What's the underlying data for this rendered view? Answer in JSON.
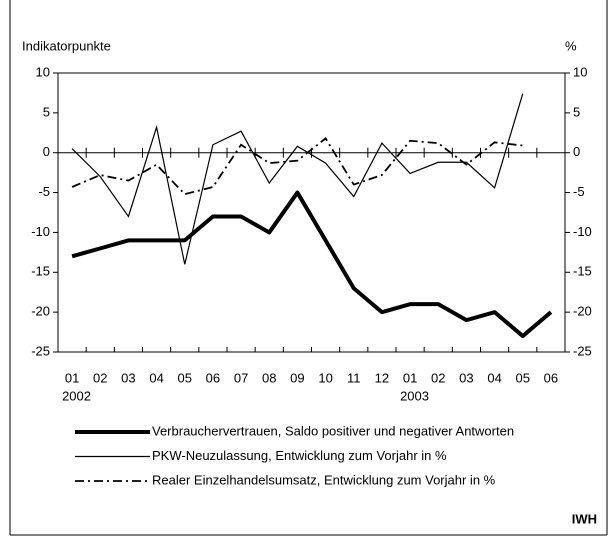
{
  "chart_data": {
    "type": "line",
    "ylabel": "Indikatorpunkte",
    "y2label": "%",
    "categories": [
      "01",
      "02",
      "03",
      "04",
      "05",
      "06",
      "07",
      "08",
      "09",
      "10",
      "11",
      "12",
      "01",
      "02",
      "03",
      "04",
      "05",
      "06"
    ],
    "category_years": [
      "2002",
      null,
      null,
      null,
      null,
      null,
      null,
      null,
      null,
      null,
      null,
      null,
      "2003",
      null,
      null,
      null,
      null,
      null
    ],
    "ylim": [
      -25,
      10
    ],
    "yticks": [
      10,
      5,
      0,
      -5,
      -10,
      -15,
      -20,
      -25
    ],
    "y2lim": [
      -25,
      10
    ],
    "y2ticks": [
      10,
      5,
      0,
      -5,
      -10,
      -15,
      -20,
      -25
    ],
    "series": [
      {
        "name": "Verbrauchervertrauen, Saldo positiver und negativer Antworten",
        "color": "#000000",
        "style": "thick",
        "values": [
          -13,
          -12,
          -11,
          -11,
          -11,
          -8,
          -8,
          -10,
          -5,
          -11,
          -17,
          -20,
          -19,
          -19,
          -21,
          -20,
          -23,
          -20
        ]
      },
      {
        "name": "PKW-Neuzulassung, Entwicklung zum Vorjahr in %",
        "color": "#000000",
        "style": "thin",
        "axis": "y2",
        "values": [
          0.5,
          -3,
          -8,
          3.2,
          -14,
          1,
          2.7,
          -3.8,
          0.8,
          -1.3,
          -5.5,
          1.2,
          -2.6,
          -1.2,
          -1.2,
          -4.4,
          7.4,
          null
        ]
      },
      {
        "name": "Realer Einzelhandelsumsatz, Entwicklung zum Vorjahr in %",
        "color": "#000000",
        "style": "dashdot",
        "axis": "y2",
        "values": [
          -4.3,
          -2.8,
          -3.5,
          -1.5,
          -5.2,
          -4.3,
          1,
          -1.3,
          -1,
          1.8,
          -4,
          -2.8,
          1.5,
          1.2,
          -1.5,
          1.3,
          0.9,
          null
        ]
      }
    ],
    "source": "IWH"
  }
}
